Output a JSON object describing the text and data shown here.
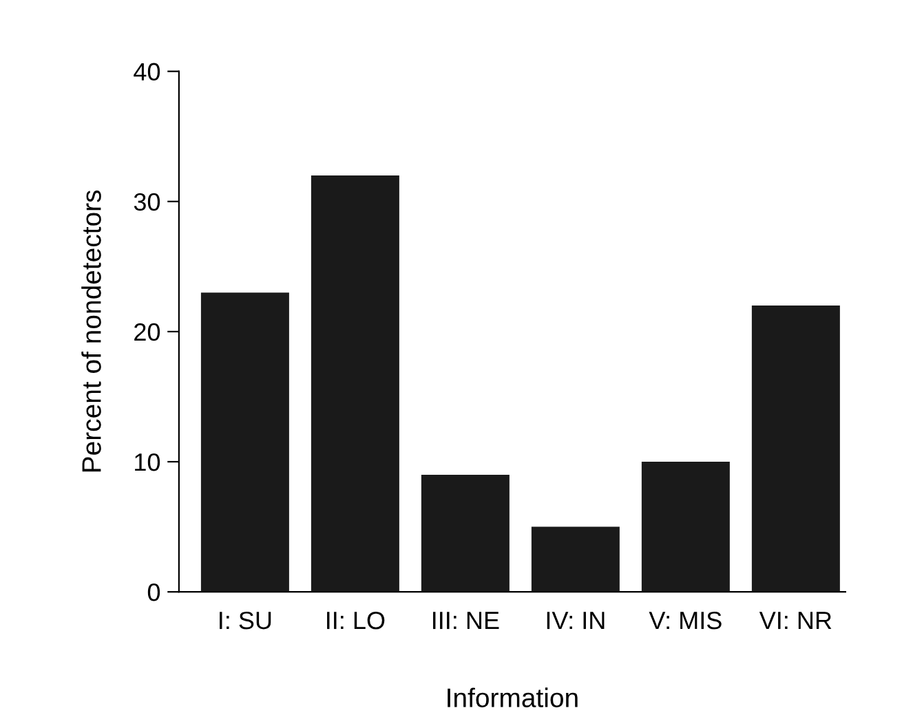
{
  "chart_data": {
    "type": "bar",
    "xlabel": "Information",
    "ylabel": "Percent of nondetectors",
    "categories": [
      "I: SU",
      "II: LO",
      "III: NE",
      "IV: IN",
      "V: MIS",
      "VI: NR"
    ],
    "values": [
      23,
      32,
      9,
      5,
      10,
      22
    ],
    "color": "#1a1a1a",
    "ylim": [
      0,
      40
    ],
    "yticks": [
      0,
      10,
      20,
      30,
      40
    ],
    "grid": false,
    "legend": false
  }
}
